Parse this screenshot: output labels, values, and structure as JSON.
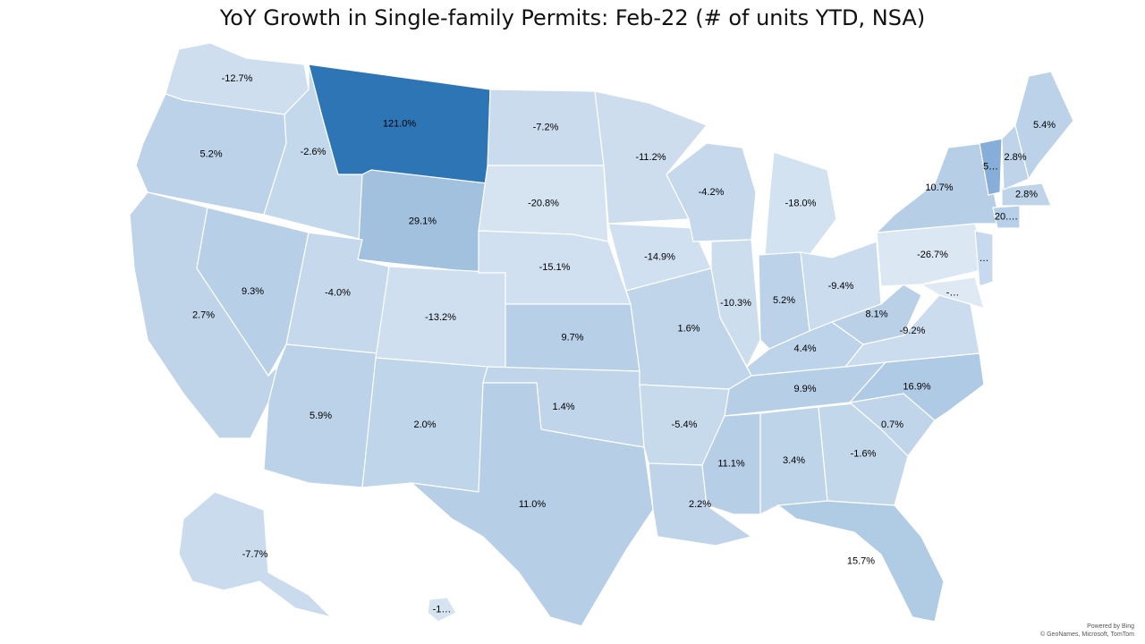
{
  "title": "YoY Growth in Single-family Permits: Feb-22 (# of units YTD, NSA)",
  "attribution": {
    "powered_by": "Powered by Bing",
    "copyright": "© GeoNames, Microsoft, TomTom"
  },
  "colors": {
    "scale_low": "#dde8f4",
    "scale_high": "#2e75b6",
    "border": "#ffffff"
  },
  "chart_data": {
    "type": "choropleth",
    "title": "YoY Growth in Single-family Permits: Feb-22 (# of units YTD, NSA)",
    "unit": "%",
    "states": [
      {
        "id": "WA",
        "value": -12.7,
        "label": "-12.7%"
      },
      {
        "id": "OR",
        "value": 5.2,
        "label": "5.2%"
      },
      {
        "id": "CA",
        "value": 2.7,
        "label": "2.7%"
      },
      {
        "id": "ID",
        "value": -2.6,
        "label": "-2.6%"
      },
      {
        "id": "NV",
        "value": 9.3,
        "label": "9.3%"
      },
      {
        "id": "MT",
        "value": 121.0,
        "label": "121.0%"
      },
      {
        "id": "WY",
        "value": 29.1,
        "label": "29.1%"
      },
      {
        "id": "UT",
        "value": -4.0,
        "label": "-4.0%"
      },
      {
        "id": "AZ",
        "value": 5.9,
        "label": "5.9%"
      },
      {
        "id": "CO",
        "value": -13.2,
        "label": "-13.2%"
      },
      {
        "id": "NM",
        "value": 2.0,
        "label": "2.0%"
      },
      {
        "id": "ND",
        "value": -7.2,
        "label": "-7.2%"
      },
      {
        "id": "SD",
        "value": -20.8,
        "label": "-20.8%"
      },
      {
        "id": "NE",
        "value": -15.1,
        "label": "-15.1%"
      },
      {
        "id": "KS",
        "value": 9.7,
        "label": "9.7%"
      },
      {
        "id": "OK",
        "value": 1.4,
        "label": "1.4%"
      },
      {
        "id": "TX",
        "value": 11.0,
        "label": "11.0%"
      },
      {
        "id": "MN",
        "value": -11.2,
        "label": "-11.2%"
      },
      {
        "id": "IA",
        "value": -14.9,
        "label": "-14.9%"
      },
      {
        "id": "MO",
        "value": 1.6,
        "label": "1.6%"
      },
      {
        "id": "AR",
        "value": -5.4,
        "label": "-5.4%"
      },
      {
        "id": "LA",
        "value": 2.2,
        "label": "2.2%"
      },
      {
        "id": "WI",
        "value": -4.2,
        "label": "-4.2%"
      },
      {
        "id": "IL",
        "value": -10.3,
        "label": "-10.3%"
      },
      {
        "id": "MI",
        "value": -18.0,
        "label": "-18.0%"
      },
      {
        "id": "IN",
        "value": 5.2,
        "label": "5.2%"
      },
      {
        "id": "OH",
        "value": -9.4,
        "label": "-9.4%"
      },
      {
        "id": "KY",
        "value": 4.4,
        "label": "4.4%"
      },
      {
        "id": "TN",
        "value": 9.9,
        "label": "9.9%"
      },
      {
        "id": "MS",
        "value": 11.1,
        "label": "11.1%"
      },
      {
        "id": "AL",
        "value": 3.4,
        "label": "3.4%"
      },
      {
        "id": "GA",
        "value": -1.6,
        "label": "-1.6%"
      },
      {
        "id": "FL",
        "value": 15.7,
        "label": "15.7%"
      },
      {
        "id": "SC",
        "value": 0.7,
        "label": "0.7%"
      },
      {
        "id": "NC",
        "value": 16.9,
        "label": "16.9%"
      },
      {
        "id": "VA",
        "value": -9.2,
        "label": "-9.2%"
      },
      {
        "id": "WV",
        "value": 8.1,
        "label": "8.1%"
      },
      {
        "id": "PA",
        "value": -26.7,
        "label": "-26.7%"
      },
      {
        "id": "NY",
        "value": 10.7,
        "label": "10.7%"
      },
      {
        "id": "VT",
        "value": null,
        "label": "5…"
      },
      {
        "id": "NH",
        "value": 2.8,
        "label": "2.8%"
      },
      {
        "id": "MA",
        "value": 2.8,
        "label": "2.8%"
      },
      {
        "id": "CT",
        "value": null,
        "label": "20.…"
      },
      {
        "id": "NJ",
        "value": null,
        "label": "…"
      },
      {
        "id": "MD",
        "value": null,
        "label": "-…"
      },
      {
        "id": "ME",
        "value": 5.4,
        "label": "5.4%"
      },
      {
        "id": "AK",
        "value": -7.7,
        "label": "-7.7%"
      },
      {
        "id": "HI",
        "value": null,
        "label": "-1…"
      }
    ]
  }
}
